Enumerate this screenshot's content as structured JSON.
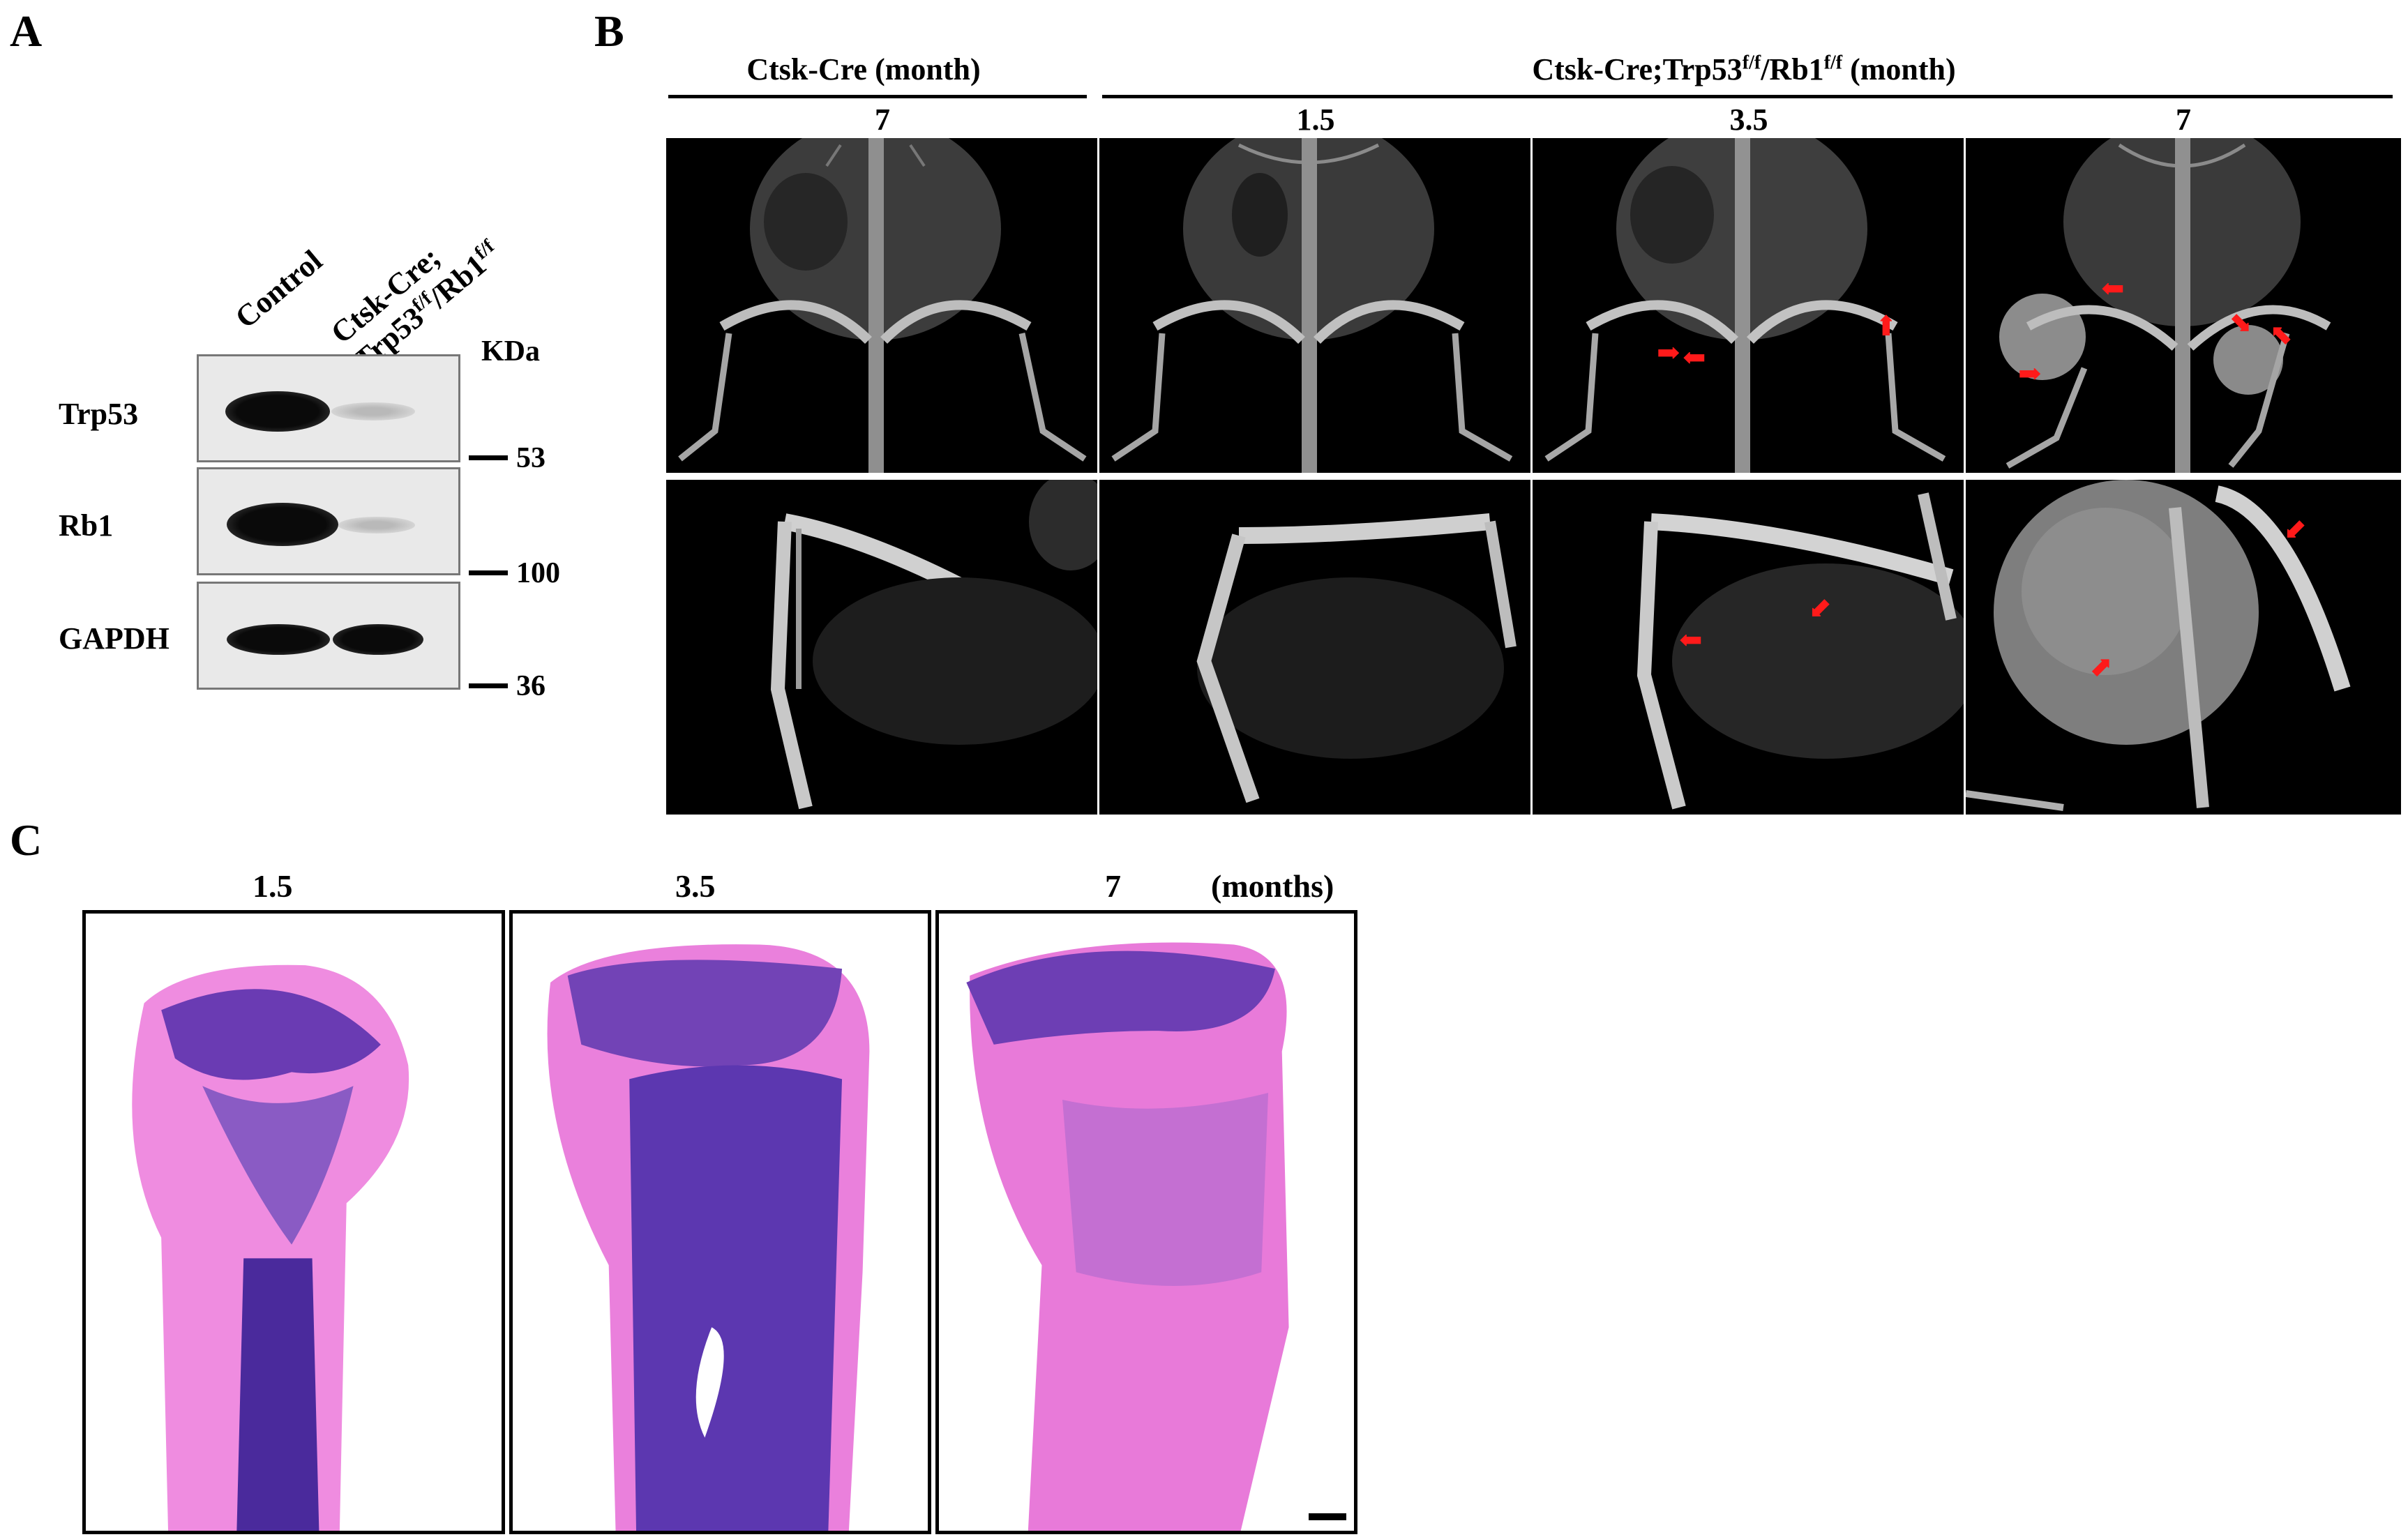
{
  "panels": {
    "a": "A",
    "b": "B",
    "c": "C"
  },
  "blot": {
    "lanes": [
      "Control",
      "Ctsk-Cre;"
    ],
    "lane2_line2": "Trp53",
    "lane2_sup1": "f/f",
    "lane2_mid": "/Rb1",
    "lane2_sup2": "f/f",
    "unit": "KDa",
    "rows": [
      "Trp53",
      "Rb1",
      "GAPDH"
    ],
    "markers": [
      "53",
      "100",
      "36"
    ]
  },
  "xray": {
    "group1_label": "Ctsk-Cre (month)",
    "group2_prefix": "Ctsk-Cre;Trp53",
    "group2_sup1": "f/f",
    "group2_mid": "/Rb1",
    "group2_sup2": "f/f",
    "group2_suffix": " (month)",
    "timepoints": [
      "7",
      "1.5",
      "3.5",
      "7"
    ],
    "arrow_color": "#ff1a1a"
  },
  "histology": {
    "timepoints": [
      "1.5",
      "3.5",
      "7"
    ],
    "unit": "(months)",
    "stain_colors": {
      "pink": "#e87ad9",
      "purple": "#5a2fa8"
    }
  }
}
